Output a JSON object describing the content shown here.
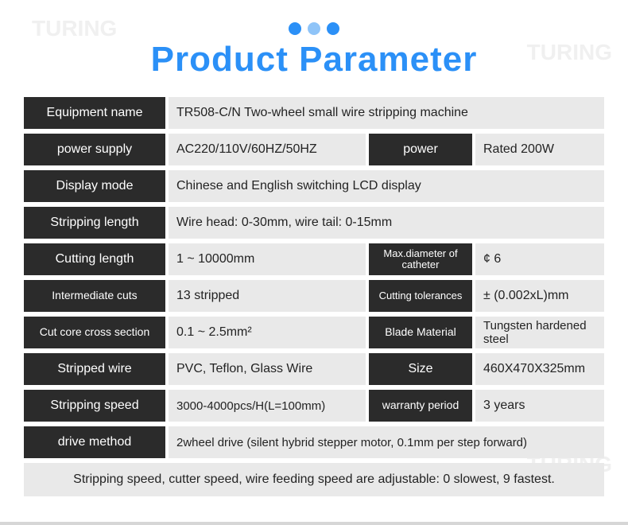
{
  "page_title": "Product Parameter",
  "colors": {
    "accent": "#2b90f7",
    "label_bg": "#2b2b2b",
    "label_fg": "#ffffff",
    "value_bg": "#e9e9e9",
    "value_fg": "#232323",
    "watermark": "#f0f0f0",
    "background": "#ffffff"
  },
  "watermark_text": "TURING",
  "rows": {
    "equipment_name": {
      "label": "Equipment name",
      "value": "TR508-C/N  Two-wheel small wire stripping machine"
    },
    "power_supply": {
      "label": "power supply",
      "value": "AC220/110V/60HZ/50HZ"
    },
    "power": {
      "label": "power",
      "value": "Rated 200W"
    },
    "display_mode": {
      "label": "Display mode",
      "value": "Chinese and English switching LCD display"
    },
    "stripping_length": {
      "label": "Stripping length",
      "value": "Wire head: 0-30mm, wire tail: 0-15mm"
    },
    "cutting_length": {
      "label": "Cutting length",
      "value": "1 ~ 10000mm"
    },
    "max_diameter": {
      "label": "Max.diameter of catheter",
      "value": "¢ 6"
    },
    "intermediate": {
      "label": "Intermediate cuts",
      "value": "13 stripped"
    },
    "cutting_tol": {
      "label": "Cutting tolerances",
      "value": "± (0.002xL)mm"
    },
    "cut_core": {
      "label": "Cut core cross section",
      "value": "0.1 ~ 2.5mm²"
    },
    "blade_material": {
      "label": "Blade Material",
      "value": "Tungsten hardened steel"
    },
    "stripped_wire": {
      "label": "Stripped wire",
      "value": "PVC, Teflon, Glass Wire"
    },
    "size": {
      "label": "Size",
      "value": "460X470X325mm"
    },
    "stripping_speed": {
      "label": "Stripping speed",
      "value": "3000-4000pcs/H(L=100mm)"
    },
    "warranty": {
      "label": "warranty period",
      "value": "3 years"
    },
    "drive_method": {
      "label": "drive method",
      "value": "2wheel drive (silent hybrid stepper motor, 0.1mm per step forward)"
    }
  },
  "footer_note": "Stripping speed, cutter speed, wire feeding speed are adjustable: 0 slowest, 9 fastest."
}
